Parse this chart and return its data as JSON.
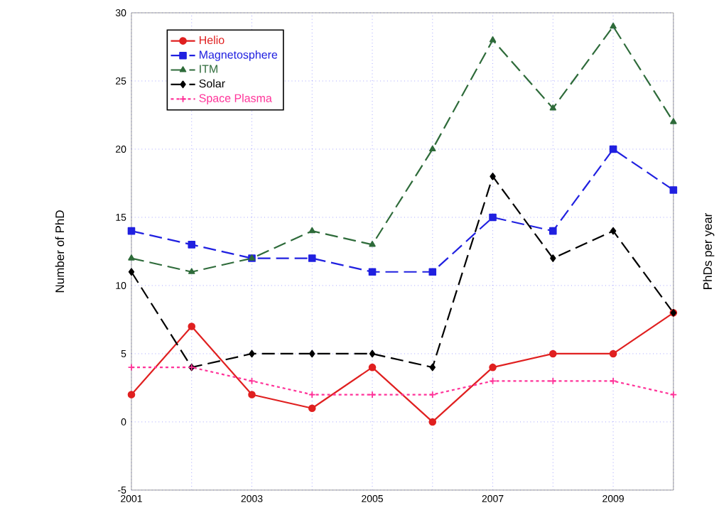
{
  "chart_data": {
    "type": "line",
    "xlabel": null,
    "ylabel": "Number of PhD",
    "y2label": "PhDs per year",
    "x": [
      2001,
      2002,
      2003,
      2004,
      2005,
      2006,
      2007,
      2008,
      2009,
      2010
    ],
    "xlim": [
      2001,
      2010
    ],
    "xticks": [
      2001,
      {
        "value": 2002,
        "label": null
      },
      2003,
      {
        "value": 2004,
        "label": null
      },
      2005,
      {
        "value": 2006,
        "label": null
      },
      2007,
      {
        "value": 2008,
        "label": null
      },
      2009,
      {
        "value": 2010,
        "label": null
      }
    ],
    "ylim": [
      -5,
      30
    ],
    "yticks": [
      -5,
      0,
      5,
      10,
      15,
      20,
      25,
      30
    ],
    "grid": true,
    "legend": "top left",
    "series": [
      {
        "name": "Helio",
        "color": "#e02020",
        "marker": "circle",
        "line_style": "solid",
        "values": [
          2,
          7,
          2,
          1,
          4,
          0,
          4,
          5,
          5,
          8
        ]
      },
      {
        "name": "Magnetosphere",
        "color": "#2020e0",
        "marker": "square",
        "line_style": "dashed",
        "values": [
          14,
          13,
          12,
          12,
          11,
          11,
          15,
          14,
          20,
          17
        ]
      },
      {
        "name": "ITM",
        "color": "#2e6b3a",
        "marker": "triangle",
        "line_style": "dashed",
        "values": [
          12,
          11,
          12,
          14,
          13,
          20,
          28,
          23,
          29,
          22
        ]
      },
      {
        "name": "Solar",
        "color": "#000000",
        "marker": "diamond",
        "line_style": "dashed",
        "values": [
          11,
          4,
          5,
          5,
          5,
          4,
          18,
          12,
          14,
          8
        ]
      },
      {
        "name": "Space Plasma",
        "color": "#ff3399",
        "marker": "cross",
        "line_style": "dotted",
        "values": [
          4,
          4,
          3,
          2,
          2,
          2,
          3,
          3,
          3,
          2
        ]
      }
    ]
  }
}
